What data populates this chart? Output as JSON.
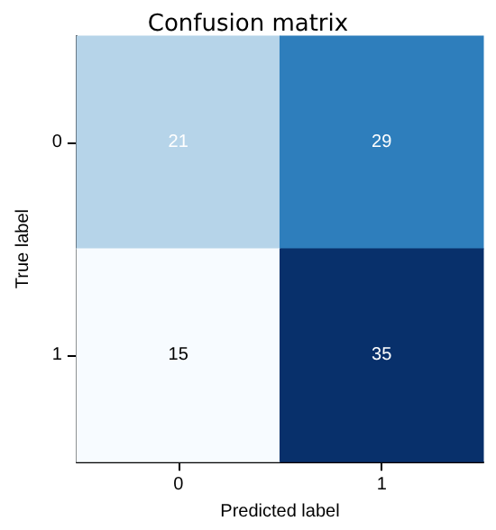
{
  "chart_data": {
    "type": "heatmap",
    "title": "Confusion matrix",
    "xlabel": "Predicted label",
    "ylabel": "True label",
    "categories": [
      "0",
      "1"
    ],
    "y_categories": [
      "0",
      "1"
    ],
    "cells": [
      [
        21,
        29
      ],
      [
        15,
        35
      ]
    ],
    "data_labels": true
  }
}
